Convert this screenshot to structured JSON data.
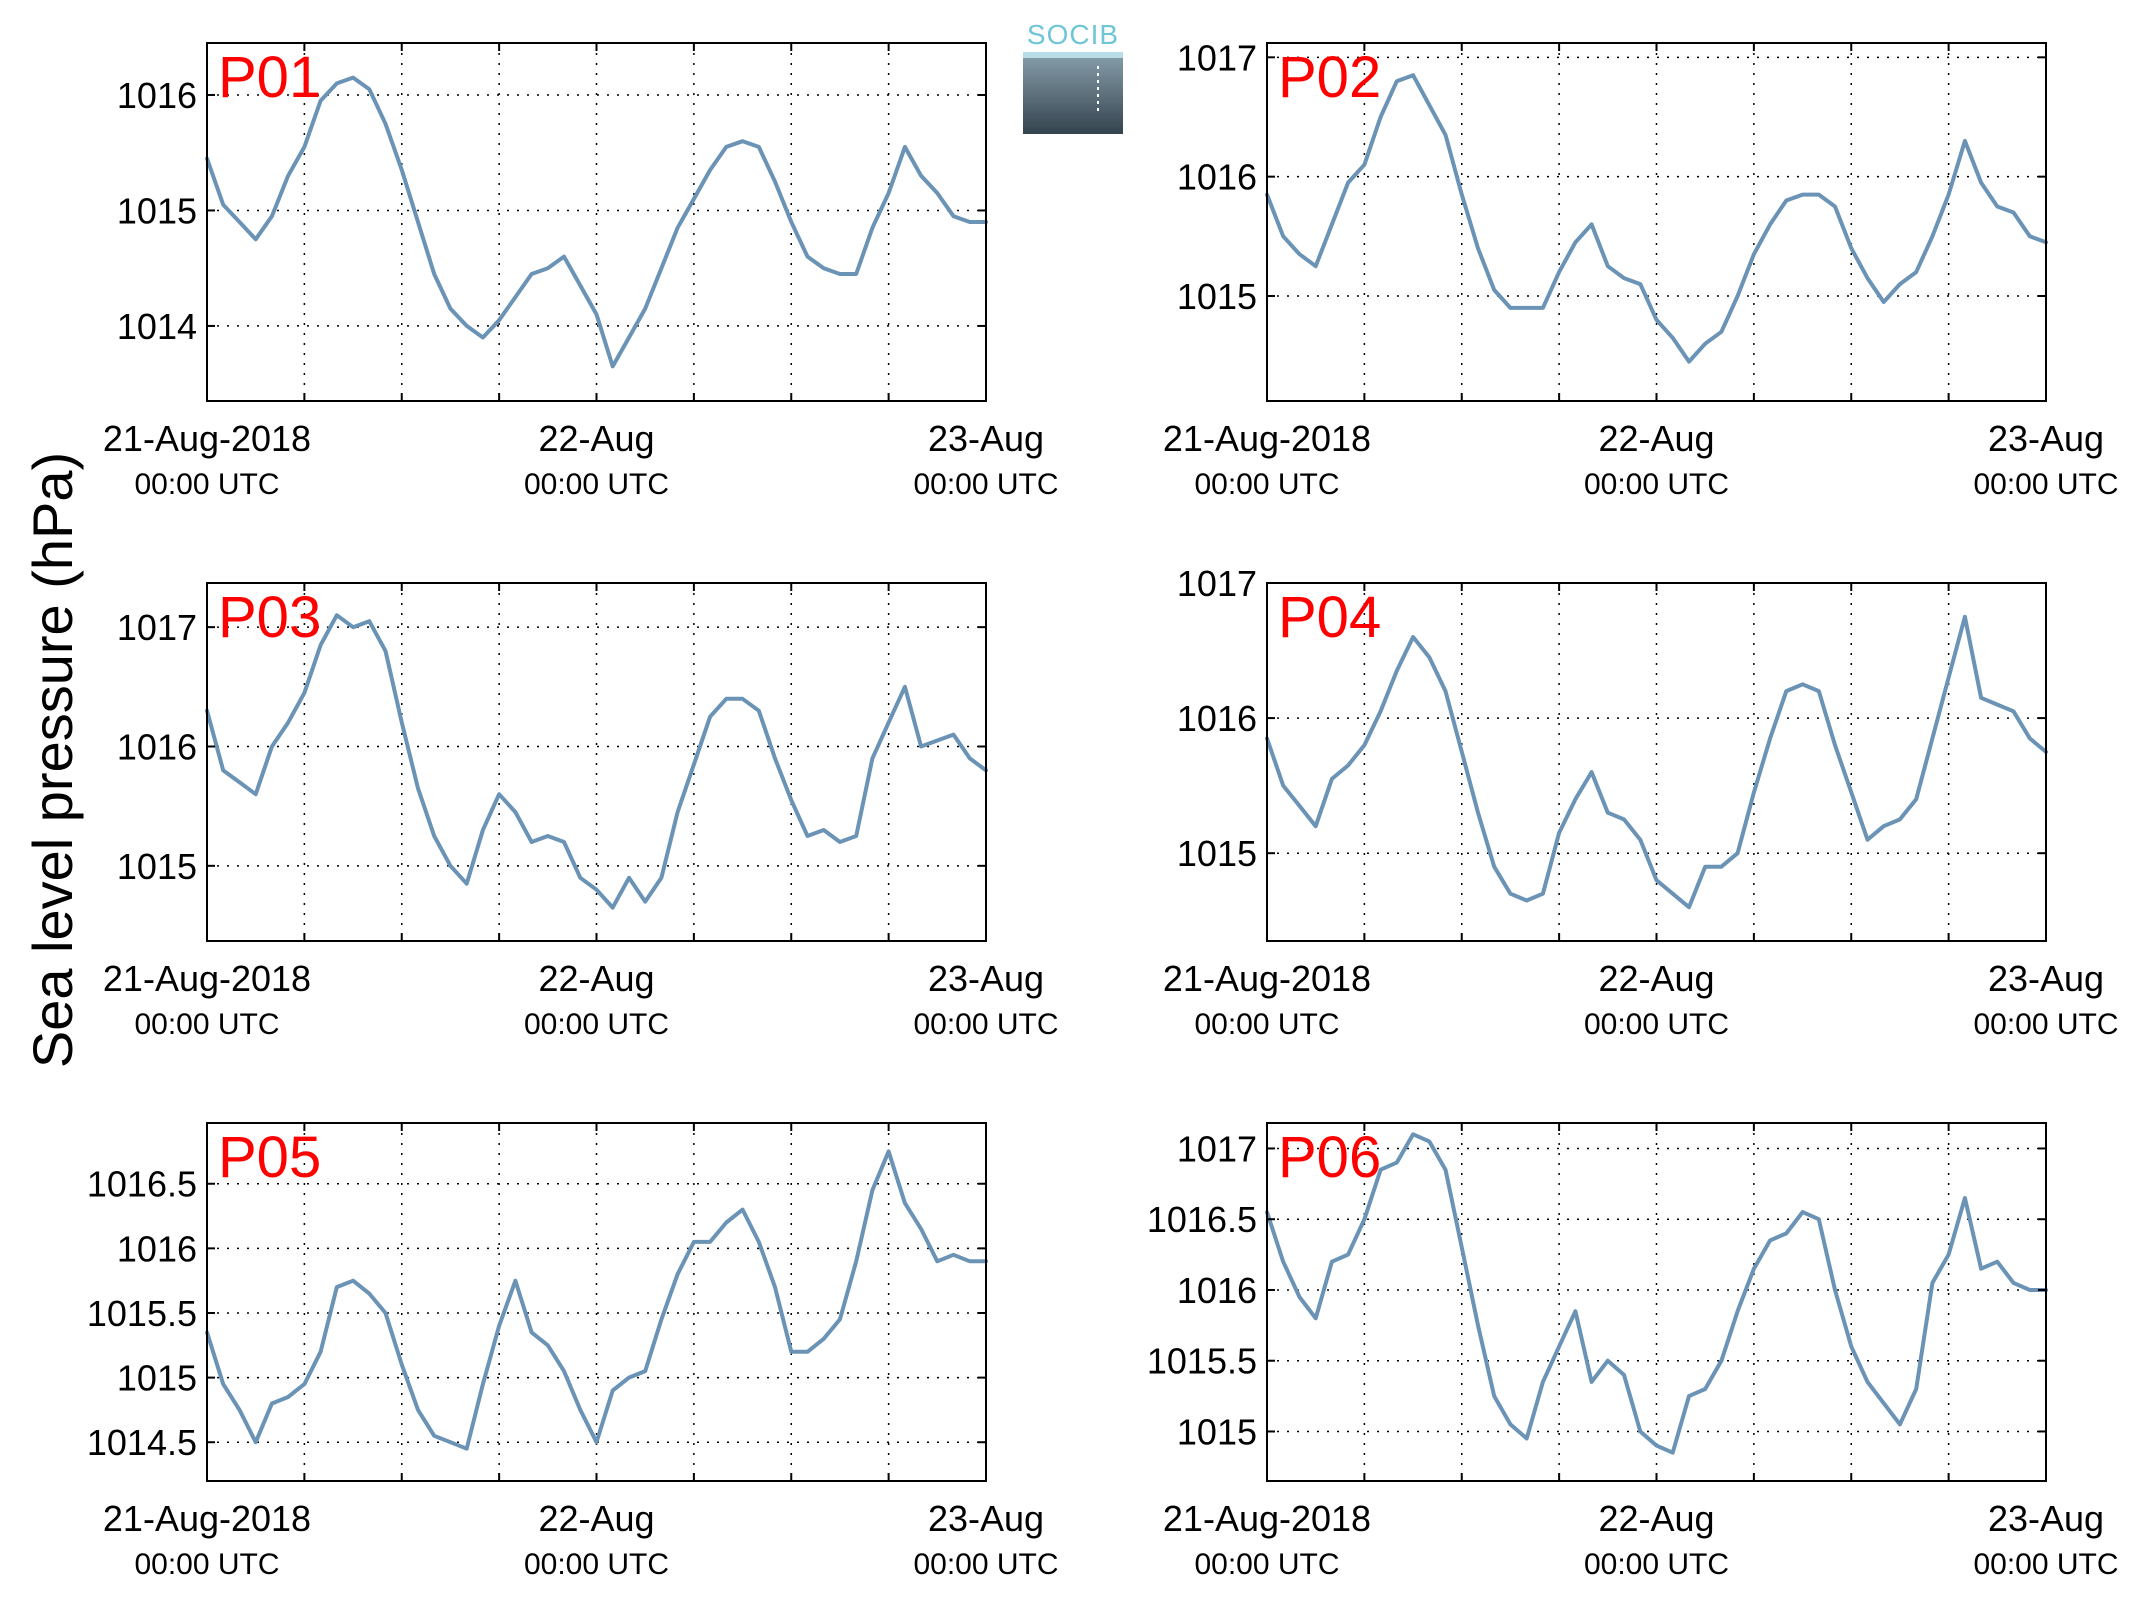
{
  "figure": {
    "ylabel": "Sea level pressure (hPa)",
    "logo": {
      "text": "SOCIB"
    },
    "colors": {
      "line": "#6a93b6",
      "title": "#ff0000",
      "grid": "#000000"
    }
  },
  "chart_data": [
    {
      "type": "line",
      "title": "P01",
      "ylabel": "Sea level pressure (hPa)",
      "xlim": [
        0,
        48
      ],
      "ylim": [
        1013.35,
        1016.45
      ],
      "yticks": [
        1014,
        1015,
        1016
      ],
      "ytick_labels": [
        "1014",
        "1015",
        "1016"
      ],
      "x_minor_ticks": [
        6,
        12,
        18,
        30,
        36,
        42
      ],
      "x_ticks": [
        0,
        24,
        48
      ],
      "x_tick_labels": [
        [
          "21-Aug-2018",
          "00:00 UTC"
        ],
        [
          "22-Aug",
          "00:00 UTC"
        ],
        [
          "23-Aug",
          "00:00 UTC"
        ]
      ],
      "grid": true,
      "series": [
        {
          "x": [
            0,
            1,
            2,
            3,
            4,
            5,
            6,
            7,
            8,
            9,
            10,
            11,
            12,
            13,
            14,
            15,
            16,
            17,
            18,
            19,
            20,
            21,
            22,
            23,
            24,
            25,
            26,
            27,
            28,
            29,
            30,
            31,
            32,
            33,
            34,
            35,
            36,
            37,
            38,
            39,
            40,
            41,
            42,
            43,
            44,
            45,
            46,
            47,
            48
          ],
          "values": [
            1015.45,
            1015.05,
            1014.9,
            1014.75,
            1014.95,
            1015.3,
            1015.55,
            1015.95,
            1016.1,
            1016.15,
            1016.05,
            1015.75,
            1015.35,
            1014.9,
            1014.45,
            1014.15,
            1014.0,
            1013.9,
            1014.05,
            1014.25,
            1014.45,
            1014.5,
            1014.6,
            1014.35,
            1014.1,
            1013.65,
            1013.9,
            1014.15,
            1014.5,
            1014.85,
            1015.1,
            1015.35,
            1015.55,
            1015.6,
            1015.55,
            1015.25,
            1014.9,
            1014.6,
            1014.5,
            1014.45,
            1014.45,
            1014.85,
            1015.15,
            1015.55,
            1015.3,
            1015.15,
            1014.95,
            1014.9,
            1014.9
          ]
        }
      ]
    },
    {
      "type": "line",
      "title": "P02",
      "ylabel": "Sea level pressure (hPa)",
      "xlim": [
        0,
        48
      ],
      "ylim": [
        1014.12,
        1017.12
      ],
      "yticks": [
        1015,
        1016,
        1017
      ],
      "ytick_labels": [
        "1015",
        "1016",
        "1017"
      ],
      "x_minor_ticks": [
        6,
        12,
        18,
        30,
        36,
        42
      ],
      "x_ticks": [
        0,
        24,
        48
      ],
      "x_tick_labels": [
        [
          "21-Aug-2018",
          "00:00 UTC"
        ],
        [
          "22-Aug",
          "00:00 UTC"
        ],
        [
          "23-Aug",
          "00:00 UTC"
        ]
      ],
      "grid": true,
      "series": [
        {
          "x": [
            0,
            1,
            2,
            3,
            4,
            5,
            6,
            7,
            8,
            9,
            10,
            11,
            12,
            13,
            14,
            15,
            16,
            17,
            18,
            19,
            20,
            21,
            22,
            23,
            24,
            25,
            26,
            27,
            28,
            29,
            30,
            31,
            32,
            33,
            34,
            35,
            36,
            37,
            38,
            39,
            40,
            41,
            42,
            43,
            44,
            45,
            46,
            47,
            48
          ],
          "values": [
            1015.85,
            1015.5,
            1015.35,
            1015.25,
            1015.6,
            1015.95,
            1016.1,
            1016.5,
            1016.8,
            1016.85,
            1016.6,
            1016.35,
            1015.85,
            1015.4,
            1015.05,
            1014.9,
            1014.9,
            1014.9,
            1015.2,
            1015.45,
            1015.6,
            1015.25,
            1015.15,
            1015.1,
            1014.8,
            1014.65,
            1014.45,
            1014.6,
            1014.7,
            1015.0,
            1015.35,
            1015.6,
            1015.8,
            1015.85,
            1015.85,
            1015.75,
            1015.4,
            1015.15,
            1014.95,
            1015.1,
            1015.2,
            1015.5,
            1015.85,
            1016.3,
            1015.95,
            1015.75,
            1015.7,
            1015.5,
            1015.45
          ]
        }
      ]
    },
    {
      "type": "line",
      "title": "P03",
      "ylabel": "Sea level pressure (hPa)",
      "xlim": [
        0,
        48
      ],
      "ylim": [
        1014.37,
        1017.37
      ],
      "yticks": [
        1015,
        1016,
        1017
      ],
      "ytick_labels": [
        "1015",
        "1016",
        "1017"
      ],
      "x_minor_ticks": [
        6,
        12,
        18,
        30,
        36,
        42
      ],
      "x_ticks": [
        0,
        24,
        48
      ],
      "x_tick_labels": [
        [
          "21-Aug-2018",
          "00:00 UTC"
        ],
        [
          "22-Aug",
          "00:00 UTC"
        ],
        [
          "23-Aug",
          "00:00 UTC"
        ]
      ],
      "grid": true,
      "series": [
        {
          "x": [
            0,
            1,
            2,
            3,
            4,
            5,
            6,
            7,
            8,
            9,
            10,
            11,
            12,
            13,
            14,
            15,
            16,
            17,
            18,
            19,
            20,
            21,
            22,
            23,
            24,
            25,
            26,
            27,
            28,
            29,
            30,
            31,
            32,
            33,
            34,
            35,
            36,
            37,
            38,
            39,
            40,
            41,
            42,
            43,
            44,
            45,
            46,
            47,
            48
          ],
          "values": [
            1016.3,
            1015.8,
            1015.7,
            1015.6,
            1016.0,
            1016.2,
            1016.45,
            1016.85,
            1017.1,
            1017.0,
            1017.05,
            1016.8,
            1016.2,
            1015.65,
            1015.25,
            1015.0,
            1014.85,
            1015.3,
            1015.6,
            1015.45,
            1015.2,
            1015.25,
            1015.2,
            1014.9,
            1014.8,
            1014.65,
            1014.9,
            1014.7,
            1014.9,
            1015.45,
            1015.85,
            1016.25,
            1016.4,
            1016.4,
            1016.3,
            1015.9,
            1015.55,
            1015.25,
            1015.3,
            1015.2,
            1015.25,
            1015.9,
            1016.2,
            1016.5,
            1016.0,
            1016.05,
            1016.1,
            1015.9,
            1015.8
          ]
        }
      ]
    },
    {
      "type": "line",
      "title": "P04",
      "ylabel": "Sea level pressure (hPa)",
      "xlim": [
        0,
        48
      ],
      "ylim": [
        1014.35,
        1017.0
      ],
      "yticks": [
        1015,
        1016,
        1017
      ],
      "ytick_labels": [
        "1015",
        "1016",
        "1017"
      ],
      "x_minor_ticks": [
        6,
        12,
        18,
        30,
        36,
        42
      ],
      "x_ticks": [
        0,
        24,
        48
      ],
      "x_tick_labels": [
        [
          "21-Aug-2018",
          "00:00 UTC"
        ],
        [
          "22-Aug",
          "00:00 UTC"
        ],
        [
          "23-Aug",
          "00:00 UTC"
        ]
      ],
      "grid": true,
      "series": [
        {
          "x": [
            0,
            1,
            2,
            3,
            4,
            5,
            6,
            7,
            8,
            9,
            10,
            11,
            12,
            13,
            14,
            15,
            16,
            17,
            18,
            19,
            20,
            21,
            22,
            23,
            24,
            25,
            26,
            27,
            28,
            29,
            30,
            31,
            32,
            33,
            34,
            35,
            36,
            37,
            38,
            39,
            40,
            41,
            42,
            43,
            44,
            45,
            46,
            47,
            48
          ],
          "values": [
            1015.85,
            1015.5,
            1015.35,
            1015.2,
            1015.55,
            1015.65,
            1015.8,
            1016.05,
            1016.35,
            1016.6,
            1016.45,
            1016.2,
            1015.75,
            1015.3,
            1014.9,
            1014.7,
            1014.65,
            1014.7,
            1015.15,
            1015.4,
            1015.6,
            1015.3,
            1015.25,
            1015.1,
            1014.8,
            1014.7,
            1014.6,
            1014.9,
            1014.9,
            1015.0,
            1015.45,
            1015.85,
            1016.2,
            1016.25,
            1016.2,
            1015.8,
            1015.45,
            1015.1,
            1015.2,
            1015.25,
            1015.4,
            1015.85,
            1016.3,
            1016.75,
            1016.15,
            1016.1,
            1016.05,
            1015.85,
            1015.75
          ]
        }
      ]
    },
    {
      "type": "line",
      "title": "P05",
      "ylabel": "Sea level pressure (hPa)",
      "xlim": [
        0,
        48
      ],
      "ylim": [
        1014.2,
        1016.97
      ],
      "yticks": [
        1014.5,
        1015,
        1015.5,
        1016,
        1016.5
      ],
      "ytick_labels": [
        "1014.5",
        "1015",
        "1015.5",
        "1016",
        "1016.5"
      ],
      "x_minor_ticks": [
        6,
        12,
        18,
        30,
        36,
        42
      ],
      "x_ticks": [
        0,
        24,
        48
      ],
      "x_tick_labels": [
        [
          "21-Aug-2018",
          "00:00 UTC"
        ],
        [
          "22-Aug",
          "00:00 UTC"
        ],
        [
          "23-Aug",
          "00:00 UTC"
        ]
      ],
      "grid": true,
      "series": [
        {
          "x": [
            0,
            1,
            2,
            3,
            4,
            5,
            6,
            7,
            8,
            9,
            10,
            11,
            12,
            13,
            14,
            15,
            16,
            17,
            18,
            19,
            20,
            21,
            22,
            23,
            24,
            25,
            26,
            27,
            28,
            29,
            30,
            31,
            32,
            33,
            34,
            35,
            36,
            37,
            38,
            39,
            40,
            41,
            42,
            43,
            44,
            45,
            46,
            47,
            48
          ],
          "values": [
            1015.35,
            1014.95,
            1014.75,
            1014.5,
            1014.8,
            1014.85,
            1014.95,
            1015.2,
            1015.7,
            1015.75,
            1015.65,
            1015.5,
            1015.1,
            1014.75,
            1014.55,
            1014.5,
            1014.45,
            1014.95,
            1015.4,
            1015.75,
            1015.35,
            1015.25,
            1015.05,
            1014.75,
            1014.5,
            1014.9,
            1015.0,
            1015.05,
            1015.45,
            1015.8,
            1016.05,
            1016.05,
            1016.2,
            1016.3,
            1016.05,
            1015.7,
            1015.2,
            1015.2,
            1015.3,
            1015.45,
            1015.9,
            1016.45,
            1016.75,
            1016.35,
            1016.15,
            1015.9,
            1015.95,
            1015.9,
            1015.9
          ]
        }
      ]
    },
    {
      "type": "line",
      "title": "P06",
      "ylabel": "Sea level pressure (hPa)",
      "xlim": [
        0,
        48
      ],
      "ylim": [
        1014.65,
        1017.18
      ],
      "yticks": [
        1015,
        1015.5,
        1016,
        1016.5,
        1017
      ],
      "ytick_labels": [
        "1015",
        "1015.5",
        "1016",
        "1016.5",
        "1017"
      ],
      "x_minor_ticks": [
        6,
        12,
        18,
        30,
        36,
        42
      ],
      "x_ticks": [
        0,
        24,
        48
      ],
      "x_tick_labels": [
        [
          "21-Aug-2018",
          "00:00 UTC"
        ],
        [
          "22-Aug",
          "00:00 UTC"
        ],
        [
          "23-Aug",
          "00:00 UTC"
        ]
      ],
      "grid": true,
      "series": [
        {
          "x": [
            0,
            1,
            2,
            3,
            4,
            5,
            6,
            7,
            8,
            9,
            10,
            11,
            12,
            13,
            14,
            15,
            16,
            17,
            18,
            19,
            20,
            21,
            22,
            23,
            24,
            25,
            26,
            27,
            28,
            29,
            30,
            31,
            32,
            33,
            34,
            35,
            36,
            37,
            38,
            39,
            40,
            41,
            42,
            43,
            44,
            45,
            46,
            47,
            48
          ],
          "values": [
            1016.55,
            1016.2,
            1015.95,
            1015.8,
            1016.2,
            1016.25,
            1016.5,
            1016.85,
            1016.9,
            1017.1,
            1017.05,
            1016.85,
            1016.3,
            1015.75,
            1015.25,
            1015.05,
            1014.95,
            1015.35,
            1015.6,
            1015.85,
            1015.35,
            1015.5,
            1015.4,
            1015.0,
            1014.9,
            1014.85,
            1015.25,
            1015.3,
            1015.5,
            1015.85,
            1016.15,
            1016.35,
            1016.4,
            1016.55,
            1016.5,
            1016.0,
            1015.6,
            1015.35,
            1015.2,
            1015.05,
            1015.3,
            1016.05,
            1016.25,
            1016.65,
            1016.15,
            1016.2,
            1016.05,
            1016.0,
            1016.0
          ]
        }
      ]
    }
  ]
}
